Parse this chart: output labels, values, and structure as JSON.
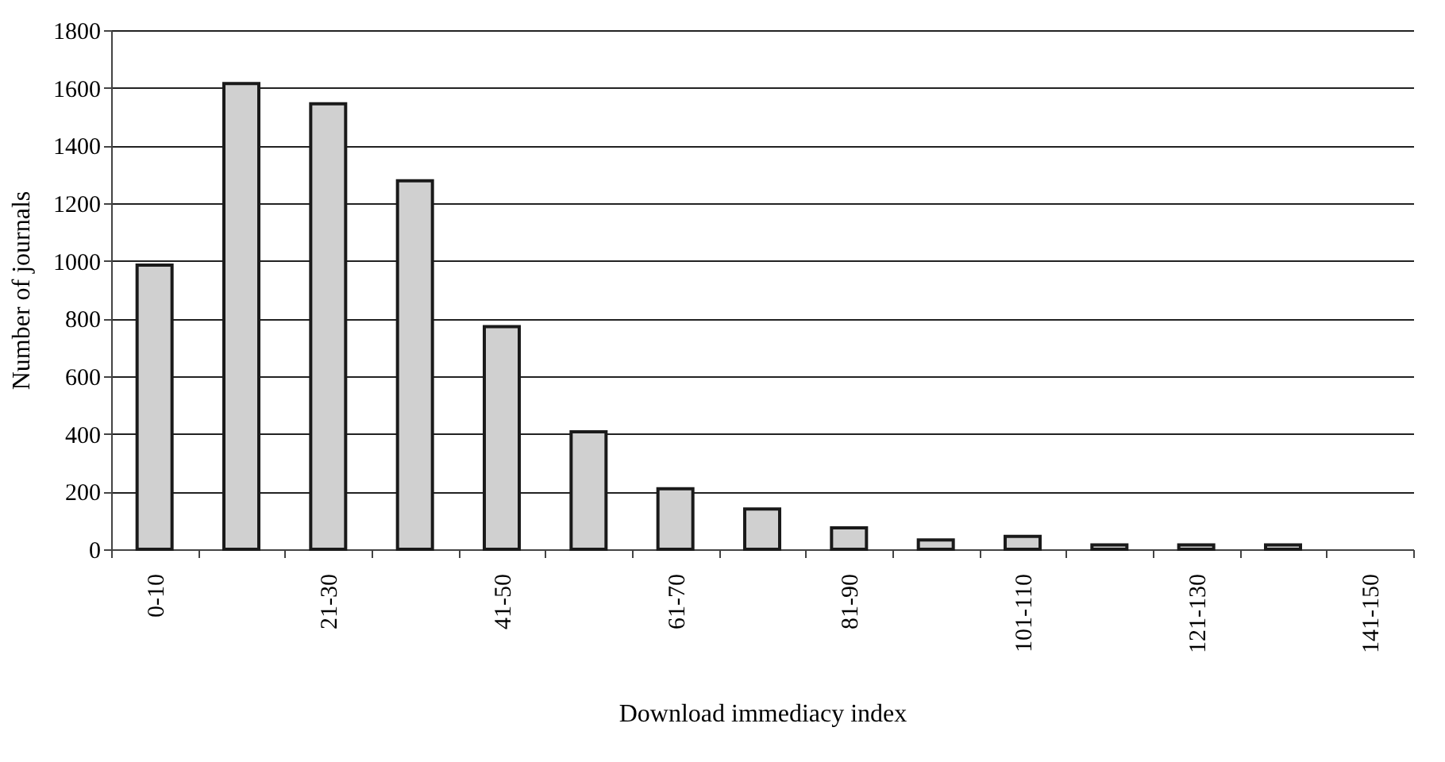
{
  "chart_data": {
    "type": "bar",
    "xlabel": "Download immediacy index",
    "ylabel": "Number of journals",
    "categories": [
      "0-10",
      null,
      "21-30",
      null,
      "41-50",
      null,
      "61-70",
      null,
      "81-90",
      null,
      "101-110",
      null,
      "121-130",
      null,
      "141-150"
    ],
    "values": [
      985,
      1615,
      1545,
      1278,
      772,
      407,
      210,
      140,
      74,
      32,
      45,
      15,
      15,
      15,
      null
    ],
    "color": "#d0d0d0",
    "ylim": [
      0,
      1800
    ],
    "yticks": [
      0,
      200,
      400,
      600,
      800,
      1000,
      1200,
      1400,
      1600,
      1800
    ],
    "grid": "y"
  }
}
